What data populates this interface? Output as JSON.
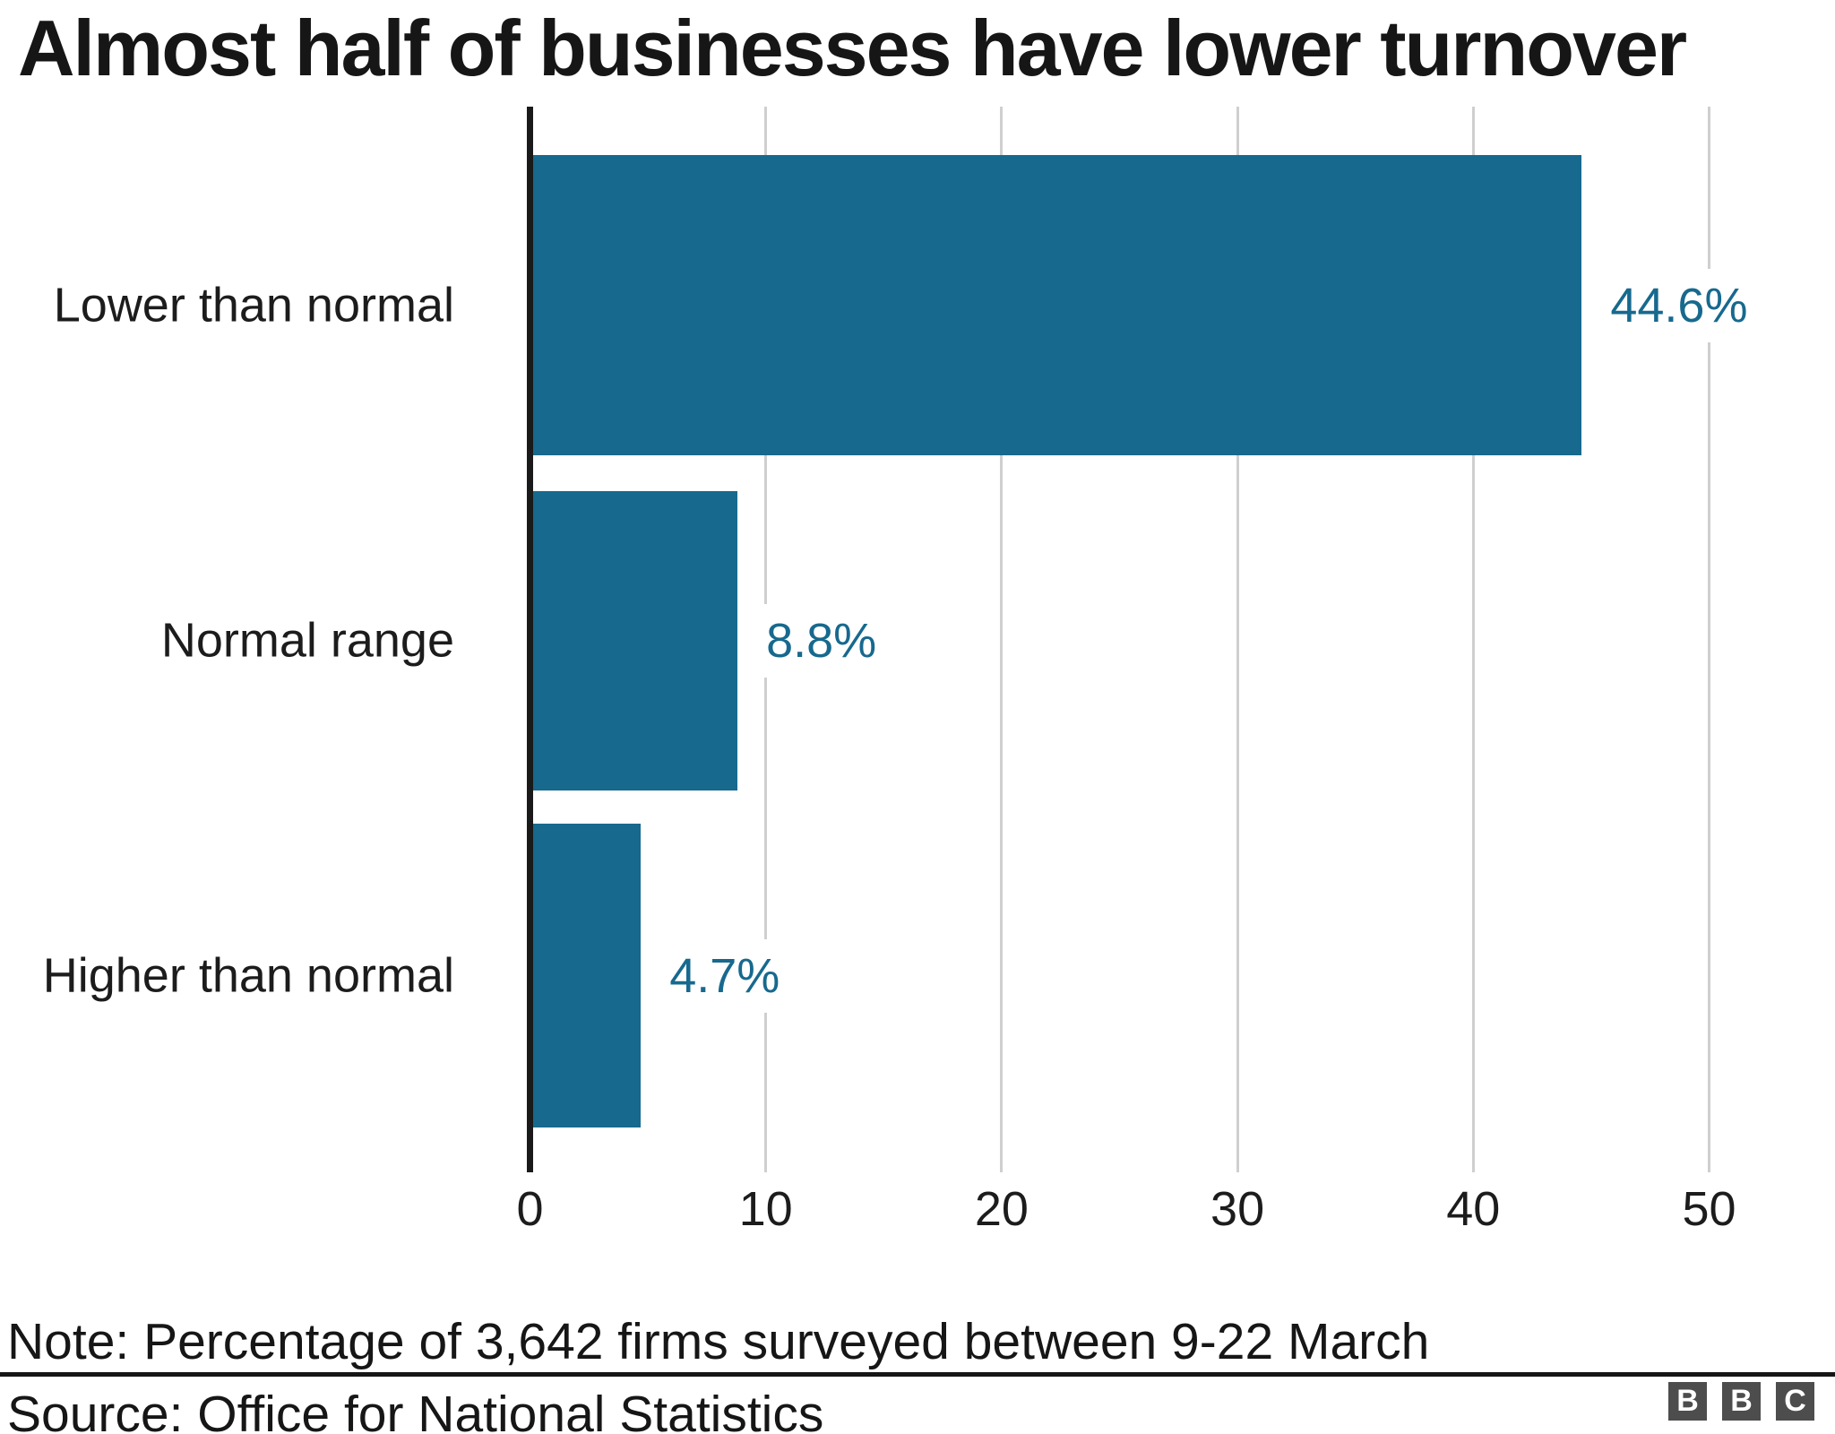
{
  "title": "Almost half of businesses have lower turnover",
  "footer": {
    "note": "Note: Percentage of 3,642 firms surveyed between 9-22 March",
    "source": "Source: Office for National Statistics",
    "logo_letters": [
      "B",
      "B",
      "C"
    ]
  },
  "colors": {
    "bar": "#17698E",
    "value_label": "#17698E",
    "gridline": "#cfcfcf",
    "axis": "#1a1a1a",
    "text": "#161616",
    "logo_box": "#4d4d4d"
  },
  "chart_data": {
    "type": "bar",
    "orientation": "horizontal",
    "title": "Almost half of businesses have lower turnover",
    "categories": [
      "Lower than normal",
      "Normal range",
      "Higher than normal"
    ],
    "values": [
      44.6,
      8.8,
      4.7
    ],
    "value_labels": [
      "44.6%",
      "8.8%",
      "4.7%"
    ],
    "x_ticks": [
      0,
      10,
      20,
      30,
      40,
      50
    ],
    "xlim": [
      0,
      52
    ],
    "xlabel": "",
    "ylabel": "",
    "grid": "vertical-gridlines",
    "legend": "none",
    "note": "Percentage of 3,642 firms surveyed between 9-22 March",
    "source": "Office for National Statistics"
  }
}
